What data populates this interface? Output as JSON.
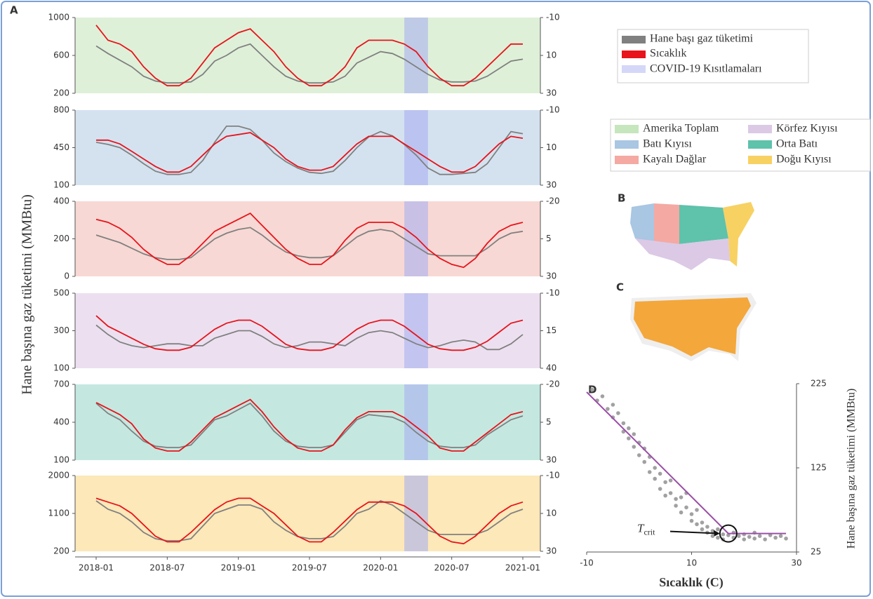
{
  "figure": {
    "panel_labels": [
      "A",
      "B",
      "C",
      "D"
    ],
    "ylabel": "Hane başına gaz tüketimi (MMBtu)",
    "regions": [
      {
        "name": "Amerika Toplam",
        "color": "#c6e6bd"
      },
      {
        "name": "Körfez Kıyısı",
        "color": "#dcc9e6"
      },
      {
        "name": "Batı Kıyısı",
        "color": "#a9c6e3"
      },
      {
        "name": "Orta Batı",
        "color": "#5fc2ab"
      },
      {
        "name": "Kayalı Dağlar",
        "color": "#f4a9a2"
      },
      {
        "name": "Doğu Kıyısı",
        "color": "#f8d163"
      }
    ]
  },
  "chart_data": [
    {
      "type": "line",
      "background": "#dff0d8",
      "x": [
        "2018-01",
        "2018-02",
        "2018-03",
        "2018-04",
        "2018-05",
        "2018-06",
        "2018-07",
        "2018-08",
        "2018-09",
        "2018-10",
        "2018-11",
        "2018-12",
        "2019-01",
        "2019-02",
        "2019-03",
        "2019-04",
        "2019-05",
        "2019-06",
        "2019-07",
        "2019-08",
        "2019-09",
        "2019-10",
        "2019-11",
        "2019-12",
        "2020-01",
        "2020-02",
        "2020-03",
        "2020-04",
        "2020-05",
        "2020-06",
        "2020-07",
        "2020-08",
        "2020-09",
        "2020-10",
        "2020-11",
        "2020-12",
        "2021-01"
      ],
      "shade": {
        "from": "2020-03",
        "to": "2020-05",
        "color": "#aab0f0",
        "label": "COVID-19 Kısıtlamaları"
      },
      "ylim": [
        200,
        1000
      ],
      "yticks": [
        200,
        600,
        1000
      ],
      "y2lim": [
        30,
        -10
      ],
      "y2ticks": [
        -10,
        10,
        30
      ],
      "series": [
        {
          "name": "Hane başı gaz tüketimi",
          "color": "#808080",
          "values": [
            700,
            620,
            550,
            480,
            380,
            330,
            310,
            310,
            320,
            400,
            540,
            600,
            680,
            720,
            600,
            480,
            380,
            330,
            310,
            310,
            320,
            380,
            520,
            580,
            640,
            620,
            560,
            480,
            400,
            340,
            320,
            320,
            330,
            380,
            460,
            540,
            560
          ]
        },
        {
          "name": "Sıcaklık",
          "color": "#e8131b",
          "axis": "y2",
          "values": [
            -6,
            2,
            4,
            8,
            16,
            22,
            26,
            26,
            22,
            14,
            6,
            2,
            -2,
            -4,
            2,
            8,
            16,
            22,
            26,
            26,
            22,
            16,
            6,
            2,
            2,
            2,
            4,
            8,
            16,
            22,
            26,
            26,
            22,
            16,
            10,
            4,
            4
          ]
        }
      ]
    },
    {
      "type": "line",
      "background": "#d4e2f0",
      "x": [
        "2018-01",
        "2018-02",
        "2018-03",
        "2018-04",
        "2018-05",
        "2018-06",
        "2018-07",
        "2018-08",
        "2018-09",
        "2018-10",
        "2018-11",
        "2018-12",
        "2019-01",
        "2019-02",
        "2019-03",
        "2019-04",
        "2019-05",
        "2019-06",
        "2019-07",
        "2019-08",
        "2019-09",
        "2019-10",
        "2019-11",
        "2019-12",
        "2020-01",
        "2020-02",
        "2020-03",
        "2020-04",
        "2020-05",
        "2020-06",
        "2020-07",
        "2020-08",
        "2020-09",
        "2020-10",
        "2020-11",
        "2020-12",
        "2021-01"
      ],
      "shade": {
        "from": "2020-03",
        "to": "2020-05",
        "color": "#aab0f0"
      },
      "ylim": [
        100,
        800
      ],
      "yticks": [
        100,
        450,
        800
      ],
      "y2lim": [
        30,
        -10
      ],
      "y2ticks": [
        -10,
        10,
        30
      ],
      "series": [
        {
          "color": "#808080",
          "values": [
            500,
            480,
            450,
            380,
            300,
            230,
            200,
            200,
            220,
            330,
            500,
            650,
            650,
            620,
            520,
            400,
            320,
            260,
            220,
            210,
            230,
            330,
            450,
            550,
            600,
            560,
            480,
            380,
            260,
            200,
            200,
            210,
            220,
            300,
            450,
            600,
            580
          ]
        },
        {
          "color": "#e8131b",
          "axis": "y2",
          "values": [
            6,
            6,
            8,
            12,
            16,
            20,
            23,
            23,
            20,
            14,
            8,
            4,
            3,
            2,
            6,
            10,
            16,
            20,
            22,
            22,
            20,
            14,
            8,
            4,
            4,
            4,
            8,
            12,
            16,
            20,
            23,
            23,
            20,
            14,
            8,
            4,
            5
          ]
        }
      ]
    },
    {
      "type": "line",
      "background": "#f8d8d4",
      "x": [
        "2018-01",
        "2018-02",
        "2018-03",
        "2018-04",
        "2018-05",
        "2018-06",
        "2018-07",
        "2018-08",
        "2018-09",
        "2018-10",
        "2018-11",
        "2018-12",
        "2019-01",
        "2019-02",
        "2019-03",
        "2019-04",
        "2019-05",
        "2019-06",
        "2019-07",
        "2019-08",
        "2019-09",
        "2019-10",
        "2019-11",
        "2019-12",
        "2020-01",
        "2020-02",
        "2020-03",
        "2020-04",
        "2020-05",
        "2020-06",
        "2020-07",
        "2020-08",
        "2020-09",
        "2020-10",
        "2020-11",
        "2020-12",
        "2021-01"
      ],
      "shade": {
        "from": "2020-03",
        "to": "2020-05",
        "color": "#aab0f0"
      },
      "ylim": [
        0,
        400
      ],
      "yticks": [
        0,
        200,
        400
      ],
      "y2lim": [
        30,
        -20
      ],
      "y2ticks": [
        -20,
        5,
        30
      ],
      "series": [
        {
          "color": "#808080",
          "values": [
            220,
            200,
            180,
            150,
            120,
            100,
            90,
            90,
            100,
            150,
            200,
            230,
            250,
            260,
            220,
            170,
            130,
            110,
            100,
            100,
            110,
            160,
            210,
            240,
            250,
            240,
            200,
            160,
            120,
            110,
            110,
            110,
            110,
            150,
            200,
            230,
            240
          ]
        },
        {
          "color": "#e8131b",
          "axis": "y2",
          "values": [
            -8,
            -6,
            -2,
            4,
            12,
            18,
            22,
            22,
            16,
            8,
            0,
            -4,
            -8,
            -12,
            -4,
            4,
            12,
            18,
            22,
            22,
            16,
            6,
            -2,
            -6,
            -6,
            -6,
            -2,
            4,
            12,
            18,
            22,
            24,
            18,
            8,
            0,
            -4,
            -6
          ]
        }
      ]
    },
    {
      "type": "line",
      "background": "#ece0f0",
      "x": [
        "2018-01",
        "2018-02",
        "2018-03",
        "2018-04",
        "2018-05",
        "2018-06",
        "2018-07",
        "2018-08",
        "2018-09",
        "2018-10",
        "2018-11",
        "2018-12",
        "2019-01",
        "2019-02",
        "2019-03",
        "2019-04",
        "2019-05",
        "2019-06",
        "2019-07",
        "2019-08",
        "2019-09",
        "2019-10",
        "2019-11",
        "2019-12",
        "2020-01",
        "2020-02",
        "2020-03",
        "2020-04",
        "2020-05",
        "2020-06",
        "2020-07",
        "2020-08",
        "2020-09",
        "2020-10",
        "2020-11",
        "2020-12",
        "2021-01"
      ],
      "shade": {
        "from": "2020-03",
        "to": "2020-05",
        "color": "#aab0f0"
      },
      "ylim": [
        100,
        500
      ],
      "yticks": [
        100,
        300,
        500
      ],
      "y2lim": [
        40,
        -10
      ],
      "y2ticks": [
        -10,
        15,
        40
      ],
      "series": [
        {
          "color": "#808080",
          "values": [
            330,
            280,
            240,
            220,
            210,
            220,
            230,
            230,
            220,
            220,
            260,
            280,
            300,
            300,
            270,
            230,
            210,
            220,
            240,
            240,
            230,
            220,
            260,
            290,
            300,
            290,
            260,
            230,
            210,
            220,
            240,
            250,
            240,
            200,
            200,
            230,
            280
          ]
        },
        {
          "color": "#e8131b",
          "axis": "y2",
          "values": [
            5,
            12,
            16,
            20,
            24,
            27,
            28,
            28,
            26,
            20,
            14,
            10,
            8,
            8,
            12,
            18,
            24,
            27,
            28,
            28,
            26,
            20,
            14,
            10,
            8,
            8,
            12,
            18,
            24,
            27,
            28,
            28,
            26,
            22,
            16,
            10,
            8
          ]
        }
      ]
    },
    {
      "type": "line",
      "background": "#c4e8e0",
      "x": [
        "2018-01",
        "2018-02",
        "2018-03",
        "2018-04",
        "2018-05",
        "2018-06",
        "2018-07",
        "2018-08",
        "2018-09",
        "2018-10",
        "2018-11",
        "2018-12",
        "2019-01",
        "2019-02",
        "2019-03",
        "2019-04",
        "2019-05",
        "2019-06",
        "2019-07",
        "2019-08",
        "2019-09",
        "2019-10",
        "2019-11",
        "2019-12",
        "2020-01",
        "2020-02",
        "2020-03",
        "2020-04",
        "2020-05",
        "2020-06",
        "2020-07",
        "2020-08",
        "2020-09",
        "2020-10",
        "2020-11",
        "2020-12",
        "2021-01"
      ],
      "shade": {
        "from": "2020-03",
        "to": "2020-05",
        "color": "#aab0f0"
      },
      "ylim": [
        100,
        700
      ],
      "yticks": [
        100,
        400,
        700
      ],
      "y2lim": [
        30,
        -20
      ],
      "y2ticks": [
        -20,
        5,
        30
      ],
      "series": [
        {
          "color": "#808080",
          "values": [
            550,
            470,
            420,
            330,
            250,
            210,
            200,
            200,
            220,
            320,
            420,
            450,
            500,
            550,
            450,
            330,
            250,
            210,
            200,
            200,
            220,
            320,
            420,
            460,
            450,
            440,
            400,
            320,
            250,
            210,
            200,
            200,
            220,
            300,
            360,
            420,
            450
          ]
        },
        {
          "color": "#e8131b",
          "axis": "y2",
          "values": [
            -8,
            -4,
            0,
            6,
            16,
            22,
            24,
            24,
            18,
            10,
            2,
            -2,
            -6,
            -10,
            -2,
            8,
            16,
            22,
            24,
            24,
            20,
            10,
            2,
            -2,
            -2,
            -2,
            2,
            8,
            14,
            22,
            24,
            24,
            18,
            12,
            6,
            0,
            -2
          ]
        }
      ]
    },
    {
      "type": "line",
      "background": "#fce8b8",
      "x": [
        "2018-01",
        "2018-02",
        "2018-03",
        "2018-04",
        "2018-05",
        "2018-06",
        "2018-07",
        "2018-08",
        "2018-09",
        "2018-10",
        "2018-11",
        "2018-12",
        "2019-01",
        "2019-02",
        "2019-03",
        "2019-04",
        "2019-05",
        "2019-06",
        "2019-07",
        "2019-08",
        "2019-09",
        "2019-10",
        "2019-11",
        "2019-12",
        "2020-01",
        "2020-02",
        "2020-03",
        "2020-04",
        "2020-05",
        "2020-06",
        "2020-07",
        "2020-08",
        "2020-09",
        "2020-10",
        "2020-11",
        "2020-12",
        "2021-01"
      ],
      "shade": {
        "from": "2020-03",
        "to": "2020-05",
        "color": "#aab0f0"
      },
      "ylim": [
        200,
        2000
      ],
      "yticks": [
        200,
        1100,
        2000
      ],
      "y2lim": [
        30,
        -10
      ],
      "y2ticks": [
        -10,
        10,
        30
      ],
      "xticks": [
        "2018-01",
        "2018-07",
        "2019-01",
        "2019-07",
        "2020-01",
        "2020-07",
        "2021-01"
      ],
      "series": [
        {
          "color": "#808080",
          "values": [
            1400,
            1200,
            1100,
            900,
            650,
            500,
            450,
            450,
            500,
            800,
            1100,
            1200,
            1300,
            1300,
            1200,
            900,
            700,
            550,
            500,
            500,
            550,
            800,
            1100,
            1200,
            1400,
            1300,
            1100,
            900,
            700,
            600,
            600,
            600,
            600,
            700,
            900,
            1100,
            1200
          ]
        },
        {
          "color": "#e8131b",
          "axis": "y2",
          "values": [
            2,
            4,
            6,
            10,
            16,
            22,
            25,
            25,
            20,
            14,
            8,
            4,
            2,
            2,
            6,
            10,
            16,
            22,
            25,
            25,
            20,
            14,
            8,
            4,
            4,
            4,
            6,
            10,
            16,
            22,
            25,
            26,
            22,
            16,
            10,
            6,
            4
          ]
        }
      ]
    },
    {
      "type": "scatter",
      "color": "#8a8a8a",
      "x": [
        -9,
        -8,
        -7,
        -6,
        -5,
        -5,
        -4,
        -3,
        -3,
        -2,
        -2,
        -1,
        -1,
        0,
        0,
        1,
        1,
        2,
        2,
        3,
        3,
        4,
        4,
        5,
        5,
        6,
        6,
        7,
        7,
        8,
        8,
        9,
        9,
        10,
        10,
        11,
        11,
        12,
        12,
        13,
        13,
        14,
        14,
        15,
        15,
        16,
        16,
        17,
        18,
        18,
        19,
        20,
        20,
        21,
        22,
        22,
        23,
        24,
        25,
        26,
        27,
        28
      ],
      "y": [
        218,
        205,
        210,
        195,
        200,
        185,
        190,
        178,
        168,
        172,
        160,
        165,
        150,
        155,
        140,
        148,
        132,
        138,
        120,
        125,
        112,
        118,
        100,
        108,
        92,
        95,
        110,
        88,
        80,
        90,
        72,
        78,
        95,
        70,
        62,
        75,
        58,
        60,
        52,
        55,
        48,
        50,
        44,
        52,
        42,
        46,
        40,
        45,
        42,
        48,
        44,
        40,
        46,
        43,
        48,
        41,
        44,
        40,
        45,
        42,
        44,
        41
      ],
      "fit": {
        "x": [
          -10,
          17,
          28
        ],
        "y": [
          215,
          47,
          47
        ],
        "color": "#9b4fa8"
      },
      "annotation": "T",
      "annotation_sub": "crit",
      "xlim": [
        -10,
        30
      ],
      "xticks": [
        -10,
        10,
        30
      ],
      "ylim": [
        25,
        225
      ],
      "yticks": [
        25,
        125,
        225
      ],
      "xlabel": "Sıcaklık (C)",
      "ylabel": "Hane başına gaz tüketimi (MMBtu)"
    }
  ]
}
